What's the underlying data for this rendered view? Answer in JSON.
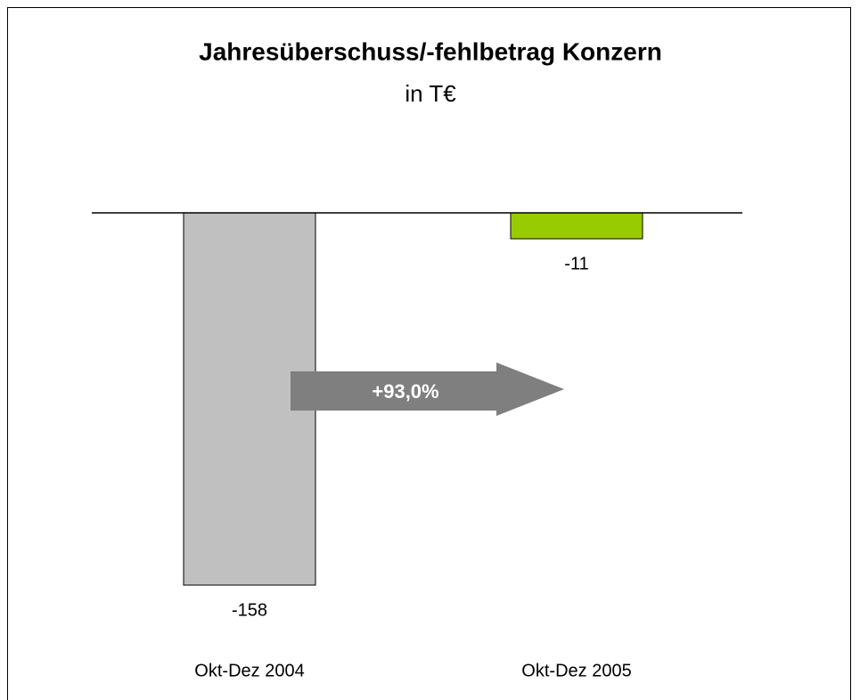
{
  "chart_data": {
    "type": "bar",
    "title": "Jahresüberschuss/-fehlbetrag Konzern",
    "subtitle": "in T€",
    "categories": [
      "Okt-Dez 2004",
      "Okt-Dez 2005"
    ],
    "values": [
      -158,
      -11
    ],
    "colors": [
      "#c0c0c0",
      "#99cc00"
    ],
    "ylim": [
      -170,
      0
    ],
    "annotations": [
      "+93,0%"
    ]
  }
}
